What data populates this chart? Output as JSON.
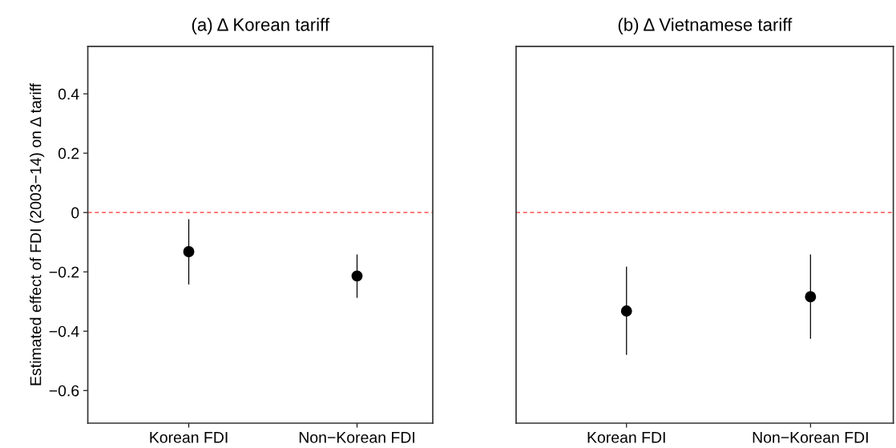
{
  "chart_data": [
    {
      "type": "scatter",
      "title": "(a) Δ Korean tariff",
      "ylabel": "Estimated effect of FDI (2003−14) on Δ tariff",
      "categories": [
        "Korean FDI",
        "Non−Korean FDI"
      ],
      "series": [
        {
          "color": "#000000",
          "values": [
            -0.132,
            -0.214
          ],
          "errors": [
            [
              -0.241,
              -0.024
            ],
            [
              -0.286,
              -0.143
            ]
          ]
        }
      ],
      "marker": "circle",
      "ylim": [
        -0.71,
        0.56
      ],
      "yticks": [
        {
          "value": -0.6,
          "label": "−0.6"
        },
        {
          "value": -0.4,
          "label": "−0.4"
        },
        {
          "value": -0.2,
          "label": "−0.2"
        },
        0,
        0.2,
        0.4
      ],
      "ref_lines": [
        {
          "axis": "y",
          "value": 0,
          "color": "#ff3030",
          "line_style": "dashed"
        }
      ],
      "grid": false,
      "legend": false
    },
    {
      "type": "scatter",
      "title": "(b) Δ Vietnamese tariff",
      "categories": [
        "Korean FDI",
        "Non−Korean FDI"
      ],
      "series": [
        {
          "color": "#000000",
          "values": [
            -0.332,
            -0.284
          ],
          "errors": [
            [
              -0.478,
              -0.184
            ],
            [
              -0.424,
              -0.143
            ]
          ]
        }
      ],
      "marker": "circle",
      "ylim": [
        -0.71,
        0.56
      ],
      "tick_labels": "x",
      "ref_lines": [
        {
          "axis": "y",
          "value": 0,
          "color": "#ff3030",
          "line_style": "dashed"
        }
      ],
      "grid": false,
      "legend": false
    }
  ]
}
